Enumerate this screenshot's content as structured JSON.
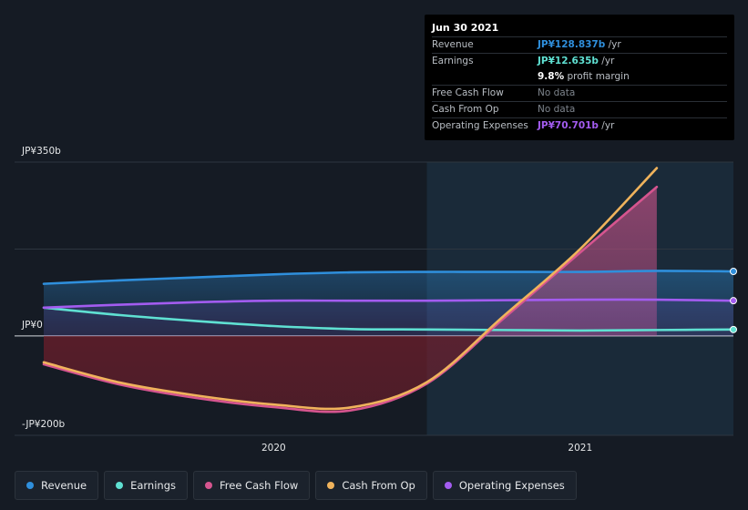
{
  "tooltip": {
    "date": "Jun 30 2021",
    "rows": [
      {
        "label": "Revenue",
        "value": "JP¥128.837b",
        "suffix": " /yr",
        "color": "#2f8fdc"
      },
      {
        "label": "Earnings",
        "value": "JP¥12.635b",
        "suffix": " /yr",
        "color": "#5fe0d2"
      },
      {
        "label": "Free Cash Flow",
        "value": "No data",
        "suffix": "",
        "color": ""
      },
      {
        "label": "Cash From Op",
        "value": "No data",
        "suffix": "",
        "color": ""
      },
      {
        "label": "Operating Expenses",
        "value": "JP¥70.701b",
        "suffix": " /yr",
        "color": "#a35cf0"
      }
    ],
    "margin_value": "9.8%",
    "margin_text": " profit margin"
  },
  "legend": [
    {
      "label": "Revenue",
      "color": "#2f8fdc"
    },
    {
      "label": "Earnings",
      "color": "#5fe0d2"
    },
    {
      "label": "Free Cash Flow",
      "color": "#d6558f"
    },
    {
      "label": "Cash From Op",
      "color": "#f0b35c"
    },
    {
      "label": "Operating Expenses",
      "color": "#a35cf0"
    }
  ],
  "chart_data": {
    "type": "line",
    "ytick_labels": [
      "JP¥350b",
      "JP¥0",
      "-JP¥200b"
    ],
    "ylim": [
      -200,
      350
    ],
    "xlim": [
      2019.25,
      2021.5
    ],
    "xtick_labels": [
      "2020",
      "2021"
    ],
    "xtick_values": [
      2020.0,
      2021.0
    ],
    "highlight_from": 2020.5,
    "series": [
      {
        "name": "Revenue",
        "color": "#2f8fdc",
        "x": [
          2019.25,
          2019.5,
          2019.75,
          2020.0,
          2020.25,
          2020.5,
          2020.75,
          2021.0,
          2021.25,
          2021.5
        ],
        "y": [
          105,
          112,
          118,
          124,
          128,
          129,
          129,
          129,
          131,
          130
        ]
      },
      {
        "name": "Earnings",
        "color": "#5fe0d2",
        "x": [
          2019.25,
          2019.5,
          2019.75,
          2020.0,
          2020.25,
          2020.5,
          2020.75,
          2021.0,
          2021.25,
          2021.5
        ],
        "y": [
          57,
          42,
          30,
          20,
          14,
          13,
          12,
          11,
          12,
          13
        ]
      },
      {
        "name": "Free Cash Flow",
        "color": "#d6558f",
        "x": [
          2019.25,
          2019.5,
          2019.75,
          2020.0,
          2020.25,
          2020.5,
          2020.75,
          2021.0,
          2021.25
        ],
        "y": [
          -57,
          -98,
          -125,
          -143,
          -150,
          -96,
          35,
          168,
          300
        ]
      },
      {
        "name": "Cash From Op",
        "color": "#f0b35c",
        "x": [
          2019.25,
          2019.5,
          2019.75,
          2020.0,
          2020.25,
          2020.5,
          2020.75,
          2021.0,
          2021.25
        ],
        "y": [
          -53,
          -94,
          -120,
          -138,
          -144,
          -93,
          40,
          175,
          338
        ]
      },
      {
        "name": "Operating Expenses",
        "color": "#a35cf0",
        "x": [
          2019.25,
          2019.5,
          2019.75,
          2020.0,
          2020.25,
          2020.5,
          2020.75,
          2021.0,
          2021.25,
          2021.5
        ],
        "y": [
          57,
          63,
          68,
          71,
          71,
          71,
          72,
          73,
          73,
          71
        ]
      }
    ]
  }
}
